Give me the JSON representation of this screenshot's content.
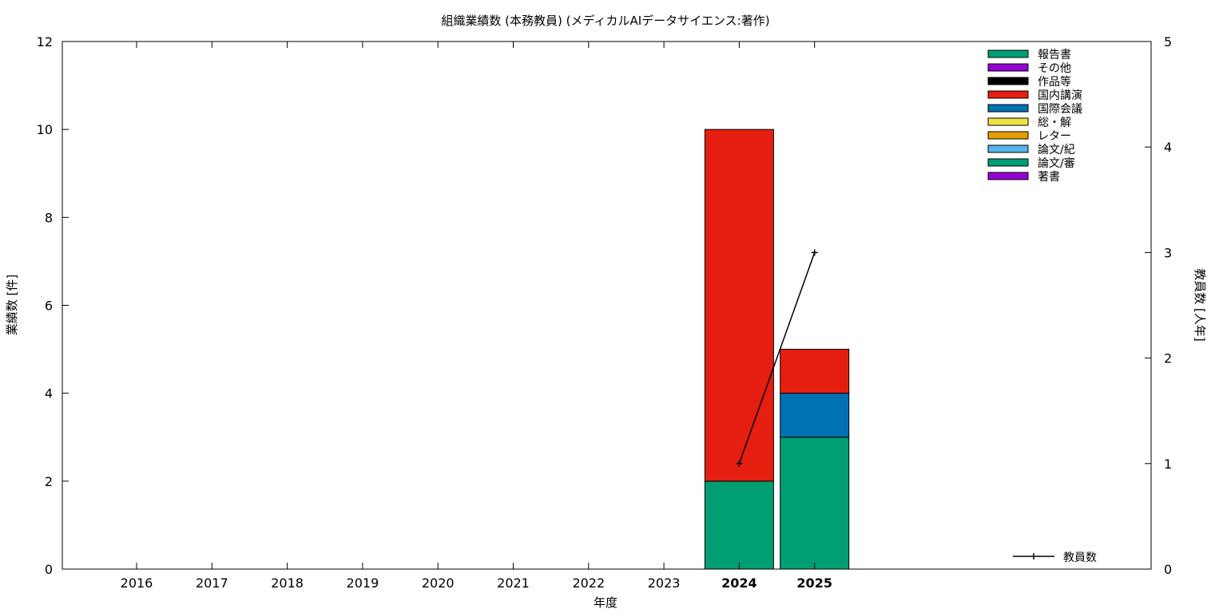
{
  "chart_data": {
    "type": "bar",
    "stacked": true,
    "title": "組織業績数 (本務教員) (メディカルAIデータサイエンス:著作)",
    "xlabel": "年度",
    "ylabel": "業績数 [件]",
    "y2label": "教員数 [人年]",
    "categories": [
      "2016",
      "2017",
      "2018",
      "2019",
      "2020",
      "2021",
      "2022",
      "2023",
      "2024",
      "2025"
    ],
    "highlight_categories": [
      "2024",
      "2025"
    ],
    "ylim": [
      0,
      12
    ],
    "yticks": [
      0,
      2,
      4,
      6,
      8,
      10,
      12
    ],
    "y2lim": [
      0,
      5
    ],
    "y2ticks": [
      0,
      1,
      2,
      3,
      4,
      5
    ],
    "grid": false,
    "legend_position": "top-right",
    "series": [
      {
        "name": "著書",
        "color": "#9400d3",
        "values": [
          0,
          0,
          0,
          0,
          0,
          0,
          0,
          0,
          0,
          0
        ]
      },
      {
        "name": "論文/審",
        "color": "#009e73",
        "values": [
          0,
          0,
          0,
          0,
          0,
          0,
          0,
          0,
          2,
          3
        ]
      },
      {
        "name": "論文/紀",
        "color": "#56b4e9",
        "values": [
          0,
          0,
          0,
          0,
          0,
          0,
          0,
          0,
          0,
          0
        ]
      },
      {
        "name": "レター",
        "color": "#e69f00",
        "values": [
          0,
          0,
          0,
          0,
          0,
          0,
          0,
          0,
          0,
          0
        ]
      },
      {
        "name": "総・解",
        "color": "#f0e442",
        "values": [
          0,
          0,
          0,
          0,
          0,
          0,
          0,
          0,
          0,
          0
        ]
      },
      {
        "name": "国際会議",
        "color": "#0072b2",
        "values": [
          0,
          0,
          0,
          0,
          0,
          0,
          0,
          0,
          0,
          1
        ]
      },
      {
        "name": "国内講演",
        "color": "#e51e10",
        "values": [
          0,
          0,
          0,
          0,
          0,
          0,
          0,
          0,
          8,
          1
        ]
      },
      {
        "name": "作品等",
        "color": "#000000",
        "values": [
          0,
          0,
          0,
          0,
          0,
          0,
          0,
          0,
          0,
          0
        ]
      },
      {
        "name": "その他",
        "color": "#9400d3",
        "values": [
          0,
          0,
          0,
          0,
          0,
          0,
          0,
          0,
          0,
          0
        ]
      },
      {
        "name": "報告書",
        "color": "#009e73",
        "values": [
          0,
          0,
          0,
          0,
          0,
          0,
          0,
          0,
          0,
          0
        ]
      }
    ],
    "line_series": {
      "name": "教員数",
      "axis": "y2",
      "color": "#000000",
      "points": [
        {
          "x": "2024",
          "y": 1
        },
        {
          "x": "2025",
          "y": 3
        }
      ]
    }
  }
}
